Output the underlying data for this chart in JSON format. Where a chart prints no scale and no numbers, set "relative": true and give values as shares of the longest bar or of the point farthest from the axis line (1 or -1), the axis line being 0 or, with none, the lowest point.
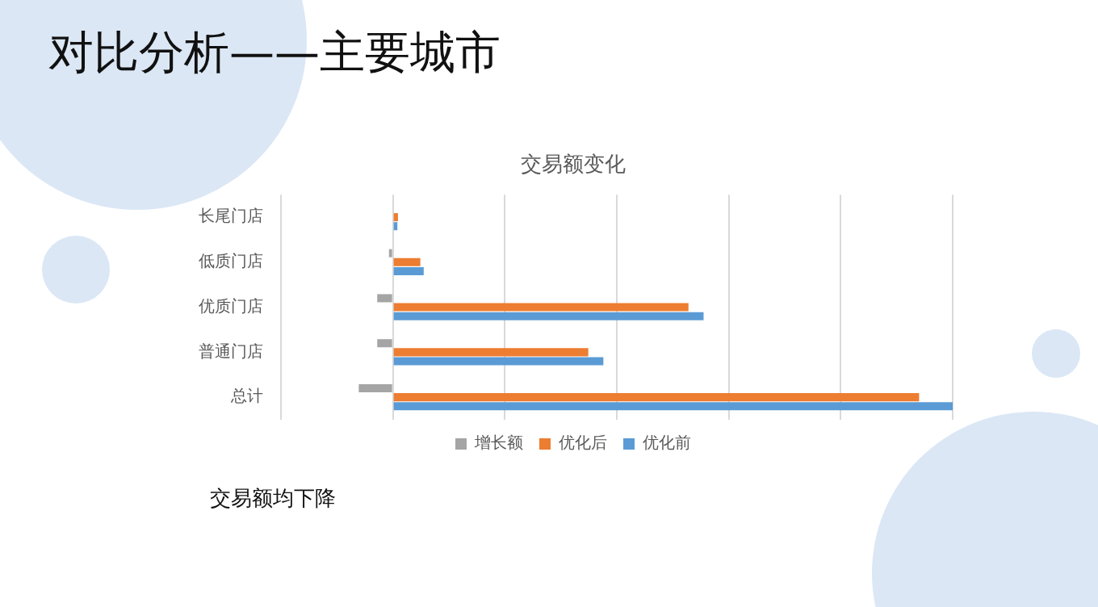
{
  "chart_data": {
    "type": "bar",
    "orientation": "horizontal",
    "relative": true,
    "title": "交易额变化",
    "annotations": [
      "对比分析——主要城市",
      "交易额均下降"
    ],
    "categories": [
      "长尾门店",
      "低质门店",
      "优质门店",
      "普通门店",
      "总计"
    ],
    "series": [
      {
        "name": "增长额",
        "color": "#a5a5a5",
        "values": [
          null,
          -0.007,
          -0.028,
          -0.028,
          -0.061
        ]
      },
      {
        "name": "优化后",
        "color": "#ed7d31",
        "values": [
          0.009,
          0.049,
          0.528,
          0.349,
          0.94
        ]
      },
      {
        "name": "优化前",
        "color": "#5b9bd5",
        "values": [
          0.008,
          0.055,
          0.555,
          0.376,
          1
        ]
      }
    ],
    "grid": "x",
    "legend": "bottom"
  }
}
